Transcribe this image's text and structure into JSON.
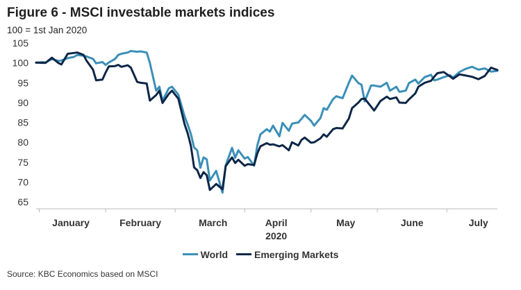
{
  "chart_data": {
    "type": "line",
    "title": "Figure 6 - MSCI investable markets indices",
    "subtitle": "100 = 1st Jan 2020",
    "xlabel": "2020",
    "ylabel": "",
    "ylim": [
      65,
      105
    ],
    "yticks": [
      65,
      70,
      75,
      80,
      85,
      90,
      95,
      100,
      105
    ],
    "xlim": [
      0,
      146
    ],
    "month_labels": [
      {
        "label": "January",
        "pos": 11
      },
      {
        "label": "February",
        "pos": 33
      },
      {
        "label": "March",
        "pos": 56
      },
      {
        "label": "April",
        "pos": 76
      },
      {
        "label": "May",
        "pos": 98
      },
      {
        "label": "June",
        "pos": 119
      },
      {
        "label": "July",
        "pos": 140
      }
    ],
    "grid": false,
    "legend": "bottom",
    "source": "Source: KBC Economics based on MSCI",
    "series": [
      {
        "name": "World",
        "color": "#3a8fb7",
        "x": [
          0,
          2,
          3,
          5,
          7,
          8,
          10,
          12,
          13,
          15,
          16,
          18,
          19,
          21,
          22,
          23,
          25,
          26,
          27,
          29,
          30,
          32,
          33,
          35,
          36,
          38,
          39,
          40,
          42,
          43,
          45,
          47,
          48,
          49,
          50,
          51,
          52,
          53,
          54,
          55,
          57,
          59,
          60,
          62,
          63,
          64,
          66,
          67,
          69,
          70,
          71,
          73,
          74,
          75,
          77,
          78,
          80,
          81,
          83,
          84,
          85,
          87,
          88,
          90,
          91,
          92,
          94,
          95,
          97,
          99,
          100,
          102,
          103,
          104,
          106,
          107,
          109,
          111,
          112,
          114,
          115,
          117,
          118,
          120,
          121,
          123,
          125,
          126,
          127,
          129,
          131,
          132,
          134,
          136,
          138,
          140,
          142,
          144,
          146
        ],
        "values": [
          100.0,
          100.2,
          100.1,
          101.0,
          100.5,
          100.6,
          101.2,
          101.5,
          102.0,
          101.8,
          101.6,
          101.0,
          99.9,
          100.2,
          99.5,
          100.1,
          101.0,
          102.0,
          102.3,
          102.6,
          103.0,
          102.8,
          102.9,
          102.6,
          100.0,
          93.0,
          94.0,
          90.5,
          93.6,
          94.0,
          92.0,
          86.5,
          84.4,
          82.1,
          78.7,
          78.0,
          73.6,
          76.2,
          75.7,
          70.4,
          72.8,
          67.3,
          74.2,
          78.6,
          76.1,
          78.0,
          75.9,
          76.3,
          74.1,
          79.2,
          82.0,
          83.3,
          82.7,
          84.2,
          81.5,
          84.9,
          82.9,
          84.7,
          85.0,
          85.9,
          86.9,
          85.4,
          84.2,
          86.1,
          88.6,
          88.2,
          90.9,
          91.6,
          91.1,
          95.0,
          96.8,
          94.9,
          94.5,
          90.3,
          94.3,
          94.3,
          94.0,
          95.0,
          93.0,
          94.0,
          92.7,
          93.0,
          94.9,
          95.8,
          94.8,
          96.4,
          97.0,
          95.6,
          95.8,
          96.4,
          96.9,
          96.3,
          97.7,
          98.5,
          99.0,
          98.3,
          98.6,
          97.8,
          98.0
        ]
      },
      {
        "name": "Emerging Markets",
        "color": "#0d2647",
        "x": [
          0,
          2,
          3,
          5,
          7,
          8,
          10,
          12,
          13,
          15,
          16,
          18,
          19,
          21,
          22,
          23,
          25,
          26,
          27,
          29,
          30,
          32,
          33,
          35,
          36,
          38,
          39,
          40,
          42,
          43,
          45,
          47,
          48,
          49,
          50,
          51,
          52,
          53,
          54,
          55,
          57,
          59,
          60,
          62,
          63,
          64,
          66,
          67,
          69,
          70,
          71,
          73,
          74,
          75,
          77,
          78,
          80,
          81,
          83,
          84,
          85,
          87,
          88,
          90,
          91,
          92,
          94,
          95,
          97,
          99,
          100,
          102,
          103,
          104,
          106,
          107,
          109,
          111,
          112,
          114,
          115,
          117,
          118,
          120,
          121,
          123,
          125,
          126,
          127,
          129,
          131,
          132,
          134,
          136,
          138,
          140,
          142,
          144,
          146
        ],
        "values": [
          100.1,
          100.0,
          100.0,
          101.3,
          100.0,
          99.6,
          102.3,
          102.5,
          102.6,
          102.0,
          100.5,
          98.3,
          95.6,
          95.8,
          97.6,
          99.1,
          99.2,
          99.5,
          99.0,
          99.4,
          98.8,
          95.2,
          95.0,
          94.8,
          90.5,
          91.9,
          93.0,
          89.9,
          92.2,
          93.0,
          91.0,
          84.5,
          82.2,
          79.1,
          73.7,
          73.0,
          71.0,
          72.5,
          71.7,
          68.0,
          69.5,
          68.2,
          74.0,
          76.2,
          74.8,
          75.6,
          74.1,
          74.5,
          74.3,
          77.2,
          79.0,
          79.8,
          79.4,
          79.5,
          79.0,
          79.3,
          78.0,
          80.0,
          79.2,
          80.6,
          81.2,
          79.9,
          80.0,
          81.0,
          82.0,
          81.4,
          83.3,
          83.6,
          83.5,
          86.0,
          88.6,
          90.0,
          90.9,
          91.0,
          89.0,
          88.0,
          90.4,
          91.5,
          90.9,
          91.3,
          90.0,
          89.9,
          90.8,
          92.3,
          94.0,
          95.0,
          95.5,
          96.5,
          97.4,
          97.7,
          96.6,
          96.0,
          97.1,
          96.8,
          96.5,
          95.9,
          96.7,
          98.8,
          98.2
        ]
      }
    ]
  }
}
